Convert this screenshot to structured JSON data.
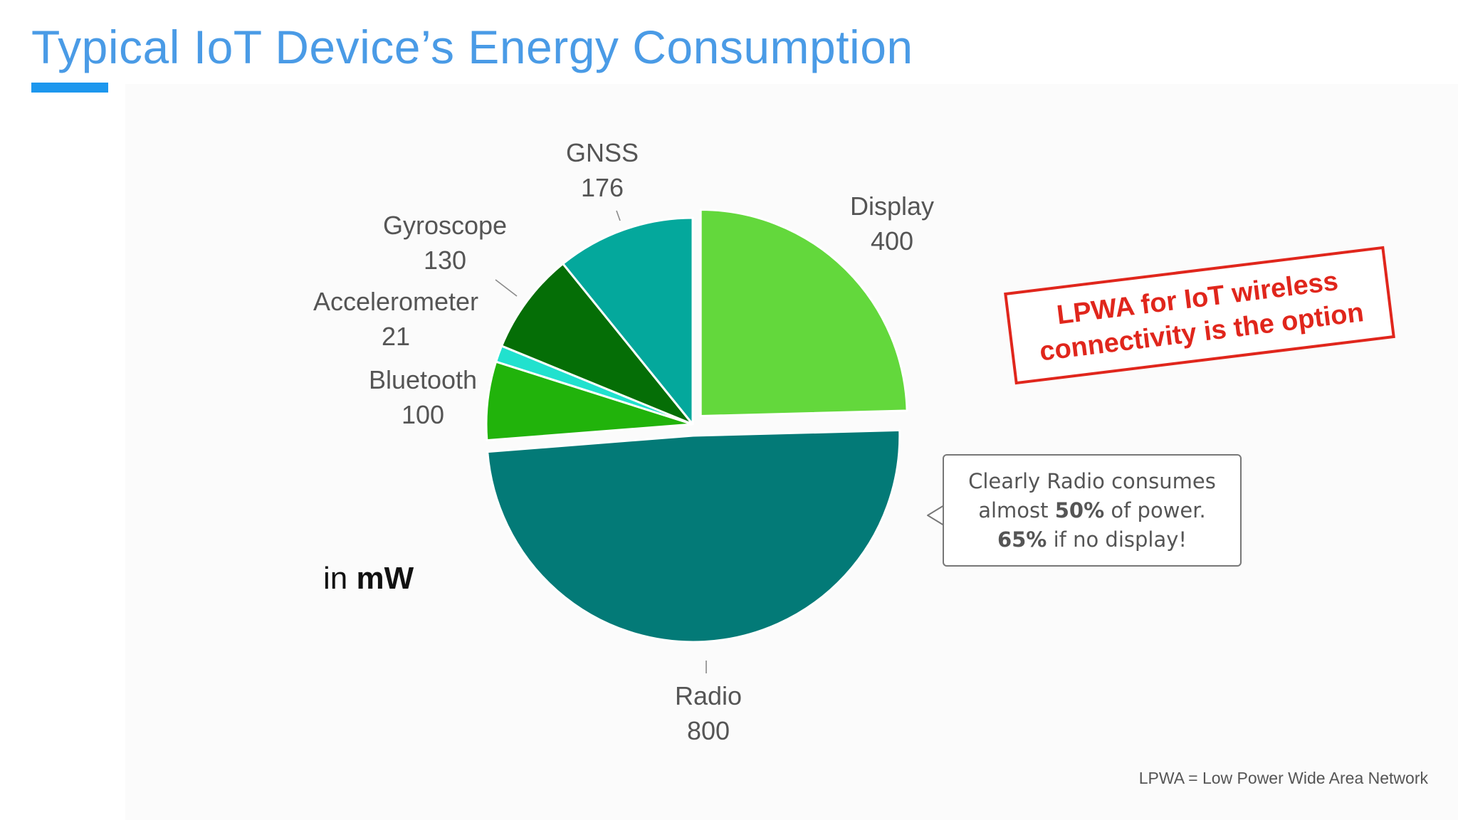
{
  "slide": {
    "title": "Typical IoT Device’s Energy Consumption",
    "unit_prefix": "in",
    "unit": "mW",
    "footnote": "LPWA = Low Power Wide Area Network"
  },
  "callout": {
    "line1": "Clearly Radio consumes",
    "line2_pre": "almost",
    "line2_bold": "50%",
    "line2_post": "of power.",
    "line3_bold": "65%",
    "line3_post": "if no display!"
  },
  "stamp": {
    "line1": "LPWA for IoT wireless",
    "line2": "connectivity is the option",
    "color": "#e0261c"
  },
  "chart_data": {
    "type": "pie",
    "unit": "mW",
    "slices": [
      {
        "label": "Display",
        "value": 400,
        "color": "#63d83c",
        "exploded": true
      },
      {
        "label": "Radio",
        "value": 800,
        "color": "#037a77",
        "exploded": true
      },
      {
        "label": "Bluetooth",
        "value": 100,
        "color": "#21b30b",
        "exploded": false
      },
      {
        "label": "Accelerometer",
        "value": 21,
        "color": "#21e1ce",
        "exploded": false
      },
      {
        "label": "Gyroscope",
        "value": 130,
        "color": "#056e06",
        "exploded": false
      },
      {
        "label": "GNSS",
        "value": 176,
        "color": "#04a89c",
        "exploded": false
      }
    ]
  }
}
